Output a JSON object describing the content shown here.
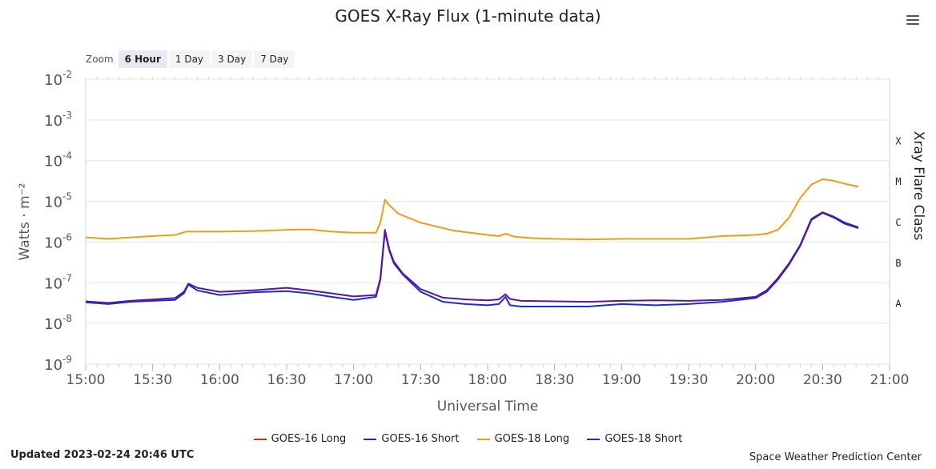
{
  "title": "GOES X-Ray Flux (1-minute data)",
  "zoom": {
    "label": "Zoom",
    "buttons": [
      "6 Hour",
      "1 Day",
      "3 Day",
      "7 Day"
    ],
    "active": "6 Hour"
  },
  "updated": "Updated 2023-02-24 20:46 UTC",
  "credit": "Space Weather Prediction Center",
  "colors": {
    "goes16_long": "#e8231c",
    "goes16_short": "#1f2bd1",
    "goes18_long": "#f39b16",
    "goes18_short": "#5716a3",
    "grid": "#e6e6e6"
  },
  "chart_data": {
    "type": "line",
    "title": "GOES X-Ray Flux (1-minute data)",
    "xlabel": "Universal Time",
    "ylabel": "Watts · m⁻²",
    "y2label": "Xray Flare Class",
    "yscale": "log",
    "ylim": [
      1e-09,
      0.01
    ],
    "xlim": [
      "15:00",
      "21:00"
    ],
    "xticks": [
      "15:00",
      "15:30",
      "16:00",
      "16:30",
      "17:00",
      "17:30",
      "18:00",
      "18:30",
      "19:00",
      "19:30",
      "20:00",
      "20:30",
      "21:00"
    ],
    "yticks": [
      {
        "base": "10",
        "exp": "-2"
      },
      {
        "base": "10",
        "exp": "-3"
      },
      {
        "base": "10",
        "exp": "-4"
      },
      {
        "base": "10",
        "exp": "-5"
      },
      {
        "base": "10",
        "exp": "-6"
      },
      {
        "base": "10",
        "exp": "-7"
      },
      {
        "base": "10",
        "exp": "-8"
      },
      {
        "base": "10",
        "exp": "-9"
      }
    ],
    "flare_classes": [
      {
        "label": "X",
        "value": 0.0001
      },
      {
        "label": "M",
        "value": 1e-05
      },
      {
        "label": "C",
        "value": 1e-06
      },
      {
        "label": "B",
        "value": 1e-07
      },
      {
        "label": "A",
        "value": 1e-08
      }
    ],
    "legend_position": "bottom",
    "series": [
      {
        "name": "GOES-16 Long",
        "color": "#e8231c",
        "x": [
          "20:44",
          "20:45",
          "20:46"
        ],
        "y": [
          2.4e-05,
          2.35e-05,
          2.3e-05
        ]
      },
      {
        "name": "GOES-16 Short",
        "color": "#1f2bd1",
        "x": [
          "15:00",
          "15:10",
          "15:20",
          "15:30",
          "15:40",
          "15:44",
          "15:46",
          "15:50",
          "16:00",
          "16:15",
          "16:30",
          "16:40",
          "16:50",
          "17:00",
          "17:10",
          "17:12",
          "17:14",
          "17:16",
          "17:18",
          "17:22",
          "17:30",
          "17:40",
          "17:50",
          "18:00",
          "18:05",
          "18:08",
          "18:10",
          "18:15",
          "18:30",
          "18:45",
          "19:00",
          "19:15",
          "19:30",
          "19:45",
          "20:00",
          "20:05",
          "20:10",
          "20:15",
          "20:20",
          "20:25",
          "20:30",
          "20:35",
          "20:40",
          "20:46"
        ],
        "y": [
          3.3e-08,
          3e-08,
          3.4e-08,
          3.6e-08,
          3.8e-08,
          5.5e-08,
          9e-08,
          6.5e-08,
          5e-08,
          5.8e-08,
          6.2e-08,
          5.5e-08,
          4.5e-08,
          3.8e-08,
          4.5e-08,
          1.2e-07,
          1.8e-06,
          6e-07,
          3e-07,
          1.6e-07,
          6e-08,
          3.4e-08,
          3e-08,
          2.8e-08,
          3e-08,
          4.5e-08,
          2.8e-08,
          2.6e-08,
          2.6e-08,
          2.6e-08,
          3e-08,
          2.8e-08,
          3e-08,
          3.4e-08,
          4.2e-08,
          6e-08,
          1.2e-07,
          2.8e-07,
          8e-07,
          3.5e-06,
          5.2e-06,
          4e-06,
          2.8e-06,
          2.2e-06
        ]
      },
      {
        "name": "GOES-18 Long",
        "color": "#f39b16",
        "x": [
          "15:00",
          "15:10",
          "15:20",
          "15:30",
          "15:40",
          "15:45",
          "16:00",
          "16:15",
          "16:30",
          "16:40",
          "16:50",
          "17:00",
          "17:10",
          "17:12",
          "17:14",
          "17:16",
          "17:20",
          "17:30",
          "17:45",
          "18:00",
          "18:05",
          "18:08",
          "18:12",
          "18:20",
          "18:30",
          "18:45",
          "19:00",
          "19:15",
          "19:30",
          "19:45",
          "20:00",
          "20:05",
          "20:10",
          "20:15",
          "20:20",
          "20:25",
          "20:30",
          "20:35",
          "20:40",
          "20:46"
        ],
        "y": [
          1.3e-06,
          1.2e-06,
          1.3e-06,
          1.4e-06,
          1.5e-06,
          1.8e-06,
          1.8e-06,
          1.85e-06,
          2e-06,
          2.05e-06,
          1.8e-06,
          1.7e-06,
          1.7e-06,
          3e-06,
          1.1e-05,
          8e-06,
          5e-06,
          3e-06,
          1.9e-06,
          1.5e-06,
          1.4e-06,
          1.6e-06,
          1.35e-06,
          1.25e-06,
          1.2e-06,
          1.15e-06,
          1.2e-06,
          1.2e-06,
          1.2e-06,
          1.4e-06,
          1.5e-06,
          1.6e-06,
          2e-06,
          4e-06,
          1.2e-05,
          2.6e-05,
          3.5e-05,
          3.2e-05,
          2.7e-05,
          2.3e-05
        ]
      },
      {
        "name": "GOES-18 Short",
        "color": "#5716a3",
        "x": [
          "15:00",
          "15:10",
          "15:20",
          "15:30",
          "15:40",
          "15:44",
          "15:46",
          "15:50",
          "16:00",
          "16:15",
          "16:30",
          "16:40",
          "16:50",
          "17:00",
          "17:10",
          "17:12",
          "17:14",
          "17:16",
          "17:18",
          "17:22",
          "17:30",
          "17:40",
          "17:50",
          "18:00",
          "18:05",
          "18:08",
          "18:10",
          "18:15",
          "18:30",
          "18:45",
          "19:00",
          "19:15",
          "19:30",
          "19:45",
          "20:00",
          "20:05",
          "20:10",
          "20:15",
          "20:20",
          "20:25",
          "20:30",
          "20:35",
          "20:40",
          "20:46"
        ],
        "y": [
          3.5e-08,
          3.2e-08,
          3.6e-08,
          3.9e-08,
          4.2e-08,
          6e-08,
          9.5e-08,
          7.5e-08,
          6e-08,
          6.5e-08,
          7.5e-08,
          6.5e-08,
          5.5e-08,
          4.6e-08,
          5e-08,
          1.3e-07,
          2e-06,
          6.5e-07,
          3.3e-07,
          1.7e-07,
          7e-08,
          4.3e-08,
          3.9e-08,
          3.7e-08,
          3.9e-08,
          5.2e-08,
          4e-08,
          3.6e-08,
          3.5e-08,
          3.4e-08,
          3.6e-08,
          3.7e-08,
          3.6e-08,
          3.8e-08,
          4.5e-08,
          6.5e-08,
          1.3e-07,
          3e-07,
          8.5e-07,
          3.7e-06,
          5.4e-06,
          4.2e-06,
          3e-06,
          2.3e-06
        ]
      }
    ]
  }
}
